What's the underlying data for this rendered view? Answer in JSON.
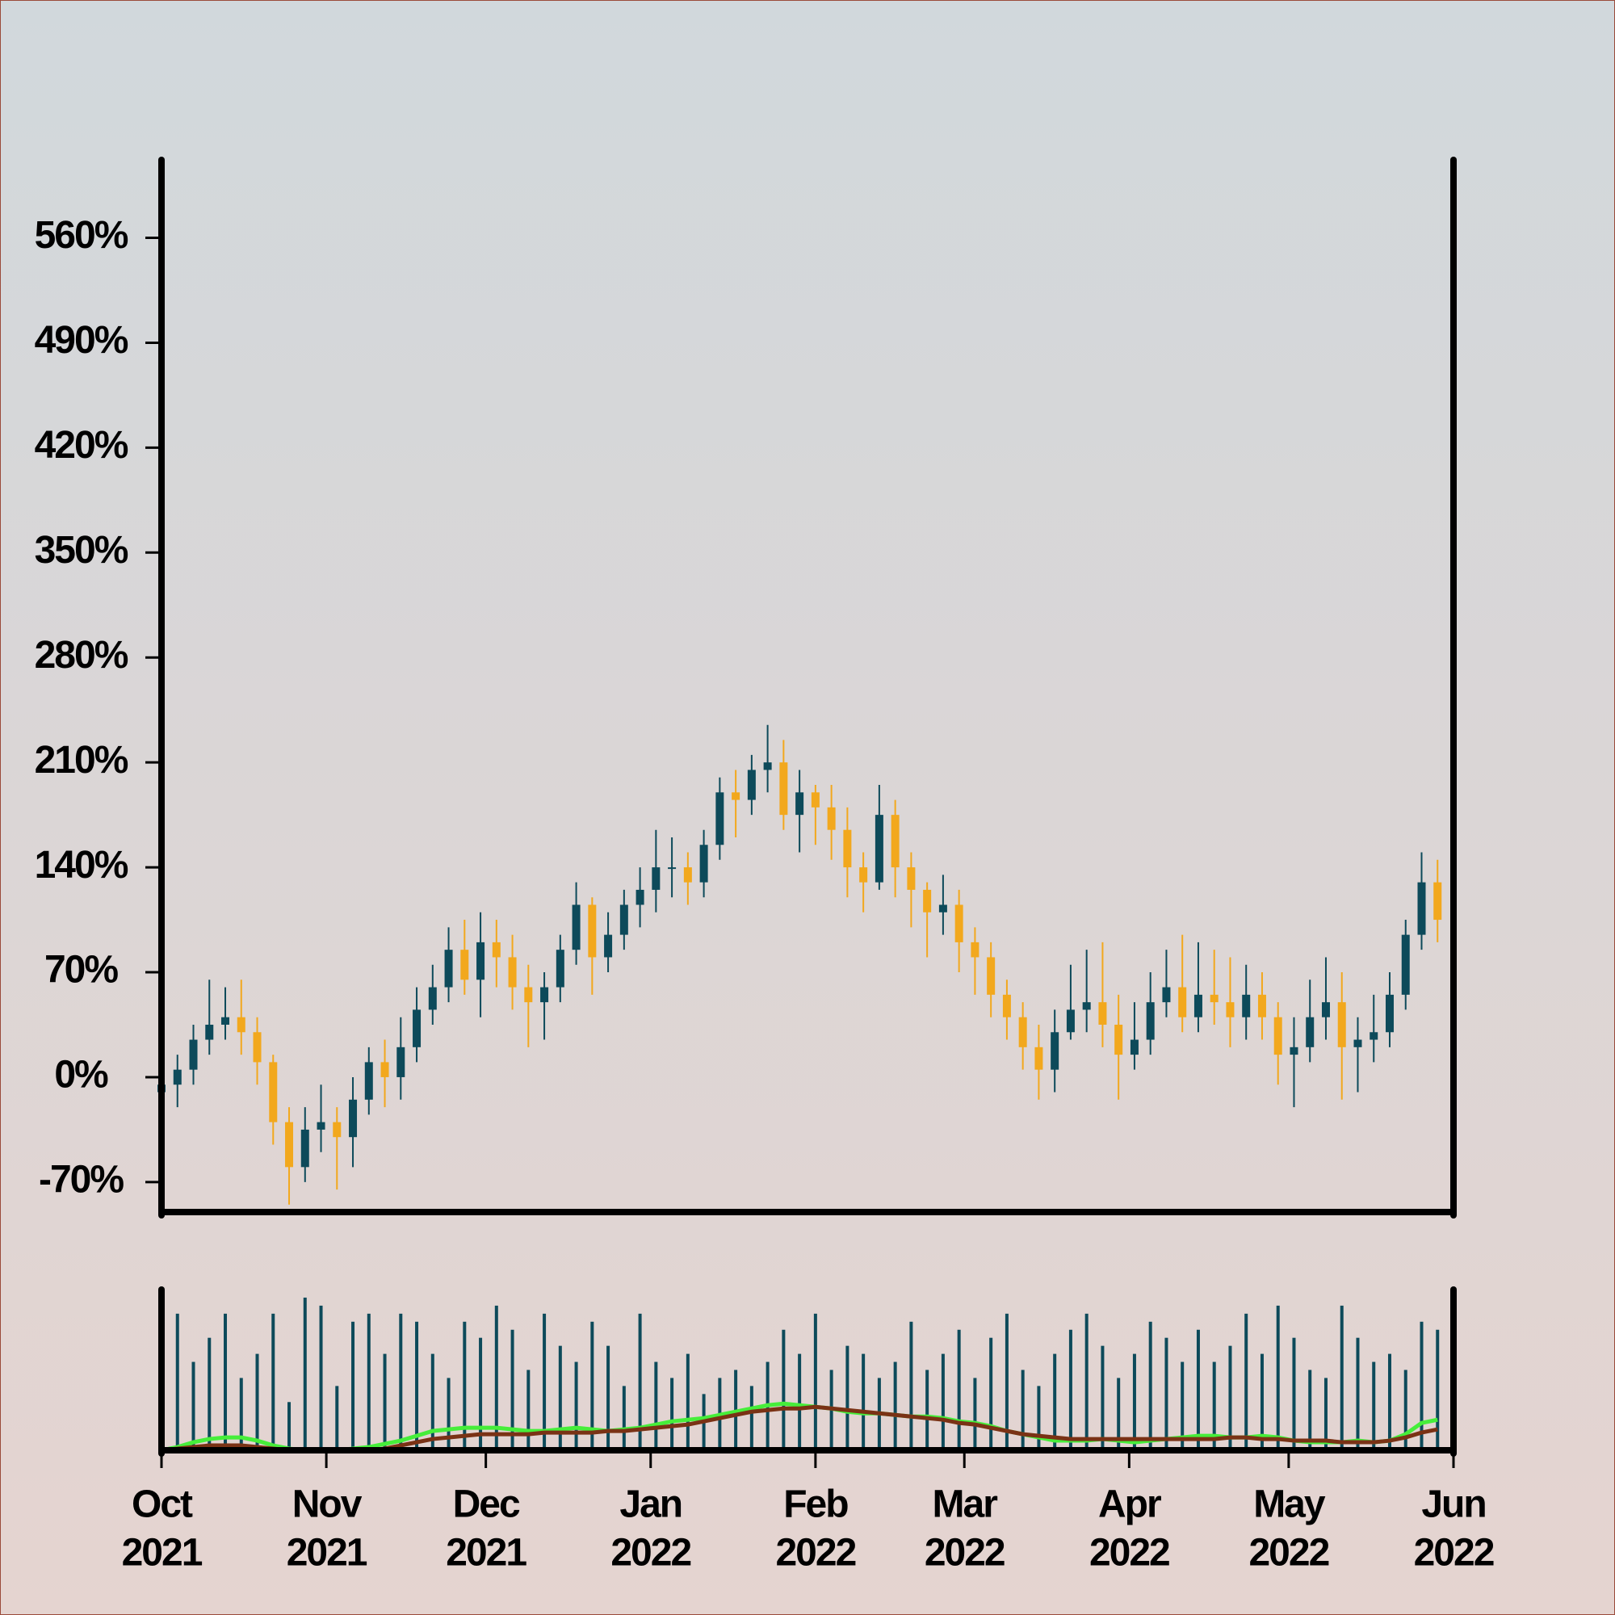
{
  "chart_data": [
    {
      "type": "candlestick",
      "x": [
        "2021-10-01",
        "2021-10-04",
        "2021-10-07",
        "2021-10-10",
        "2021-10-13",
        "2021-10-16",
        "2021-10-19",
        "2021-10-22",
        "2021-10-25",
        "2021-10-28",
        "2021-10-31",
        "2021-11-03",
        "2021-11-06",
        "2021-11-09",
        "2021-11-12",
        "2021-11-15",
        "2021-11-18",
        "2021-11-21",
        "2021-11-24",
        "2021-11-27",
        "2021-11-30",
        "2021-12-03",
        "2021-12-06",
        "2021-12-09",
        "2021-12-12",
        "2021-12-15",
        "2021-12-18",
        "2021-12-21",
        "2021-12-24",
        "2021-12-27",
        "2021-12-30",
        "2022-01-02",
        "2022-01-05",
        "2022-01-08",
        "2022-01-11",
        "2022-01-14",
        "2022-01-17",
        "2022-01-20",
        "2022-01-23",
        "2022-01-26",
        "2022-01-29",
        "2022-02-01",
        "2022-02-04",
        "2022-02-07",
        "2022-02-10",
        "2022-02-13",
        "2022-02-16",
        "2022-02-19",
        "2022-02-22",
        "2022-02-25",
        "2022-02-28",
        "2022-03-03",
        "2022-03-06",
        "2022-03-09",
        "2022-03-12",
        "2022-03-15",
        "2022-03-18",
        "2022-03-21",
        "2022-03-24",
        "2022-03-27",
        "2022-03-30",
        "2022-04-02",
        "2022-04-05",
        "2022-04-08",
        "2022-04-11",
        "2022-04-14",
        "2022-04-17",
        "2022-04-20",
        "2022-04-23",
        "2022-04-26",
        "2022-04-29",
        "2022-05-02",
        "2022-05-05",
        "2022-05-08",
        "2022-05-11",
        "2022-05-14",
        "2022-05-17",
        "2022-05-20",
        "2022-05-23",
        "2022-05-26",
        "2022-05-29"
      ],
      "open": [
        -10,
        -5,
        5,
        25,
        35,
        40,
        30,
        10,
        -30,
        -60,
        -35,
        -30,
        -40,
        -15,
        10,
        0,
        20,
        45,
        60,
        85,
        65,
        90,
        80,
        60,
        50,
        60,
        85,
        115,
        80,
        95,
        115,
        125,
        140,
        140,
        130,
        155,
        190,
        185,
        205,
        210,
        175,
        190,
        180,
        165,
        140,
        130,
        175,
        140,
        125,
        110,
        115,
        90,
        80,
        55,
        40,
        20,
        5,
        30,
        45,
        50,
        35,
        15,
        25,
        50,
        60,
        40,
        55,
        50,
        40,
        55,
        40,
        15,
        20,
        40,
        50,
        20,
        25,
        30,
        55,
        95,
        130
      ],
      "high": [
        20,
        15,
        35,
        65,
        60,
        65,
        40,
        15,
        -20,
        -20,
        -5,
        -20,
        0,
        20,
        25,
        40,
        60,
        75,
        100,
        105,
        110,
        105,
        95,
        75,
        70,
        95,
        130,
        120,
        110,
        125,
        140,
        165,
        160,
        150,
        165,
        200,
        205,
        215,
        235,
        225,
        205,
        195,
        195,
        180,
        150,
        195,
        185,
        150,
        130,
        135,
        125,
        100,
        90,
        65,
        50,
        35,
        45,
        75,
        85,
        90,
        55,
        50,
        70,
        85,
        95,
        90,
        85,
        80,
        75,
        70,
        50,
        40,
        65,
        80,
        70,
        40,
        55,
        70,
        105,
        150,
        145
      ],
      "low": [
        -45,
        -20,
        -5,
        15,
        25,
        15,
        -5,
        -45,
        -85,
        -70,
        -50,
        -75,
        -60,
        -25,
        -20,
        -15,
        10,
        35,
        50,
        55,
        40,
        60,
        45,
        20,
        25,
        50,
        75,
        55,
        70,
        85,
        100,
        110,
        120,
        115,
        120,
        145,
        160,
        175,
        190,
        165,
        150,
        155,
        145,
        120,
        110,
        125,
        120,
        100,
        80,
        95,
        70,
        55,
        40,
        25,
        5,
        -15,
        -10,
        25,
        30,
        20,
        -15,
        5,
        15,
        40,
        30,
        30,
        35,
        20,
        25,
        25,
        -5,
        -20,
        10,
        25,
        -15,
        -10,
        10,
        20,
        45,
        85,
        90
      ],
      "close": [
        -5,
        5,
        25,
        35,
        40,
        30,
        10,
        -30,
        -60,
        -35,
        -30,
        -40,
        -15,
        10,
        0,
        20,
        45,
        60,
        85,
        65,
        90,
        80,
        60,
        50,
        60,
        85,
        115,
        80,
        95,
        115,
        125,
        140,
        140,
        130,
        155,
        190,
        185,
        205,
        210,
        175,
        190,
        180,
        165,
        140,
        130,
        175,
        140,
        125,
        110,
        115,
        90,
        80,
        55,
        40,
        20,
        5,
        30,
        45,
        50,
        35,
        15,
        25,
        50,
        60,
        40,
        55,
        50,
        40,
        55,
        40,
        15,
        20,
        40,
        50,
        20,
        25,
        30,
        55,
        95,
        130,
        105
      ],
      "up_color": "#0d4a5a",
      "down_color": "#f2a81d",
      "xlim": [
        "2021-10-01",
        "2022-06-01"
      ],
      "ylim": [
        -90,
        612
      ],
      "yticks": [
        {
          "value": -70,
          "label": "-70%"
        },
        {
          "value": 0,
          "label": "0%"
        },
        {
          "value": 70,
          "label": "70%"
        },
        {
          "value": 140,
          "label": "140%"
        },
        {
          "value": 210,
          "label": "210%"
        },
        {
          "value": 280,
          "label": "280%"
        },
        {
          "value": 350,
          "label": "350%"
        },
        {
          "value": 420,
          "label": "420%"
        },
        {
          "value": 490,
          "label": "490%"
        },
        {
          "value": 560,
          "label": "560%"
        }
      ]
    },
    {
      "type": "bar",
      "values": [
        90,
        85,
        55,
        70,
        85,
        45,
        60,
        85,
        30,
        95,
        90,
        40,
        80,
        85,
        60,
        85,
        80,
        60,
        45,
        80,
        70,
        90,
        75,
        50,
        85,
        65,
        55,
        80,
        65,
        40,
        85,
        55,
        45,
        60,
        35,
        45,
        50,
        40,
        55,
        75,
        60,
        85,
        50,
        65,
        60,
        45,
        55,
        80,
        50,
        60,
        75,
        45,
        70,
        85,
        50,
        40,
        60,
        75,
        85,
        65,
        45,
        60,
        80,
        70,
        55,
        75,
        55,
        65,
        85,
        60,
        90,
        70,
        50,
        45,
        90,
        70,
        55,
        60,
        50,
        80,
        75
      ],
      "color": "#0d4a5a",
      "lines": [
        {
          "color": "#46ee3a",
          "values": [
            0,
            2,
            5,
            7,
            8,
            8,
            6,
            3,
            1,
            0,
            0,
            0,
            1,
            2,
            4,
            6,
            9,
            12,
            13,
            14,
            14,
            14,
            13,
            12,
            12,
            13,
            14,
            13,
            12,
            13,
            14,
            16,
            18,
            19,
            20,
            22,
            24,
            26,
            28,
            29,
            28,
            27,
            26,
            24,
            23,
            23,
            22,
            21,
            21,
            20,
            18,
            17,
            15,
            12,
            10,
            8,
            6,
            6,
            6,
            7,
            6,
            5,
            6,
            7,
            8,
            9,
            9,
            8,
            8,
            9,
            8,
            6,
            5,
            5,
            5,
            6,
            5,
            6,
            10,
            17,
            19
          ]
        },
        {
          "color": "#7a3215",
          "values": [
            0,
            1,
            2,
            3,
            3,
            3,
            2,
            1,
            0,
            0,
            0,
            0,
            0,
            0,
            1,
            3,
            5,
            7,
            8,
            9,
            10,
            10,
            10,
            10,
            11,
            11,
            11,
            11,
            12,
            12,
            13,
            14,
            15,
            16,
            18,
            20,
            22,
            24,
            25,
            26,
            26,
            27,
            26,
            25,
            24,
            23,
            22,
            21,
            20,
            19,
            17,
            16,
            14,
            12,
            10,
            9,
            8,
            7,
            7,
            7,
            7,
            7,
            7,
            7,
            7,
            7,
            7,
            8,
            8,
            7,
            7,
            6,
            6,
            6,
            5,
            5,
            5,
            6,
            8,
            11,
            13
          ]
        }
      ],
      "xlim": [
        "2021-10-01",
        "2022-06-01"
      ],
      "ylim": [
        0,
        100
      ],
      "xticks": [
        {
          "value": "2021-10-01",
          "label": [
            "Oct",
            "2021"
          ]
        },
        {
          "value": "2021-11-01",
          "label": [
            "Nov",
            "2021"
          ]
        },
        {
          "value": "2021-12-01",
          "label": [
            "Dec",
            "2021"
          ]
        },
        {
          "value": "2022-01-01",
          "label": [
            "Jan",
            "2022"
          ]
        },
        {
          "value": "2022-02-01",
          "label": [
            "Feb",
            "2022"
          ]
        },
        {
          "value": "2022-03-01",
          "label": [
            "Mar",
            "2022"
          ]
        },
        {
          "value": "2022-04-01",
          "label": [
            "Apr",
            "2022"
          ]
        },
        {
          "value": "2022-05-01",
          "label": [
            "May",
            "2022"
          ]
        },
        {
          "value": "2022-06-01",
          "label": [
            "Jun",
            "2022"
          ]
        }
      ]
    }
  ]
}
